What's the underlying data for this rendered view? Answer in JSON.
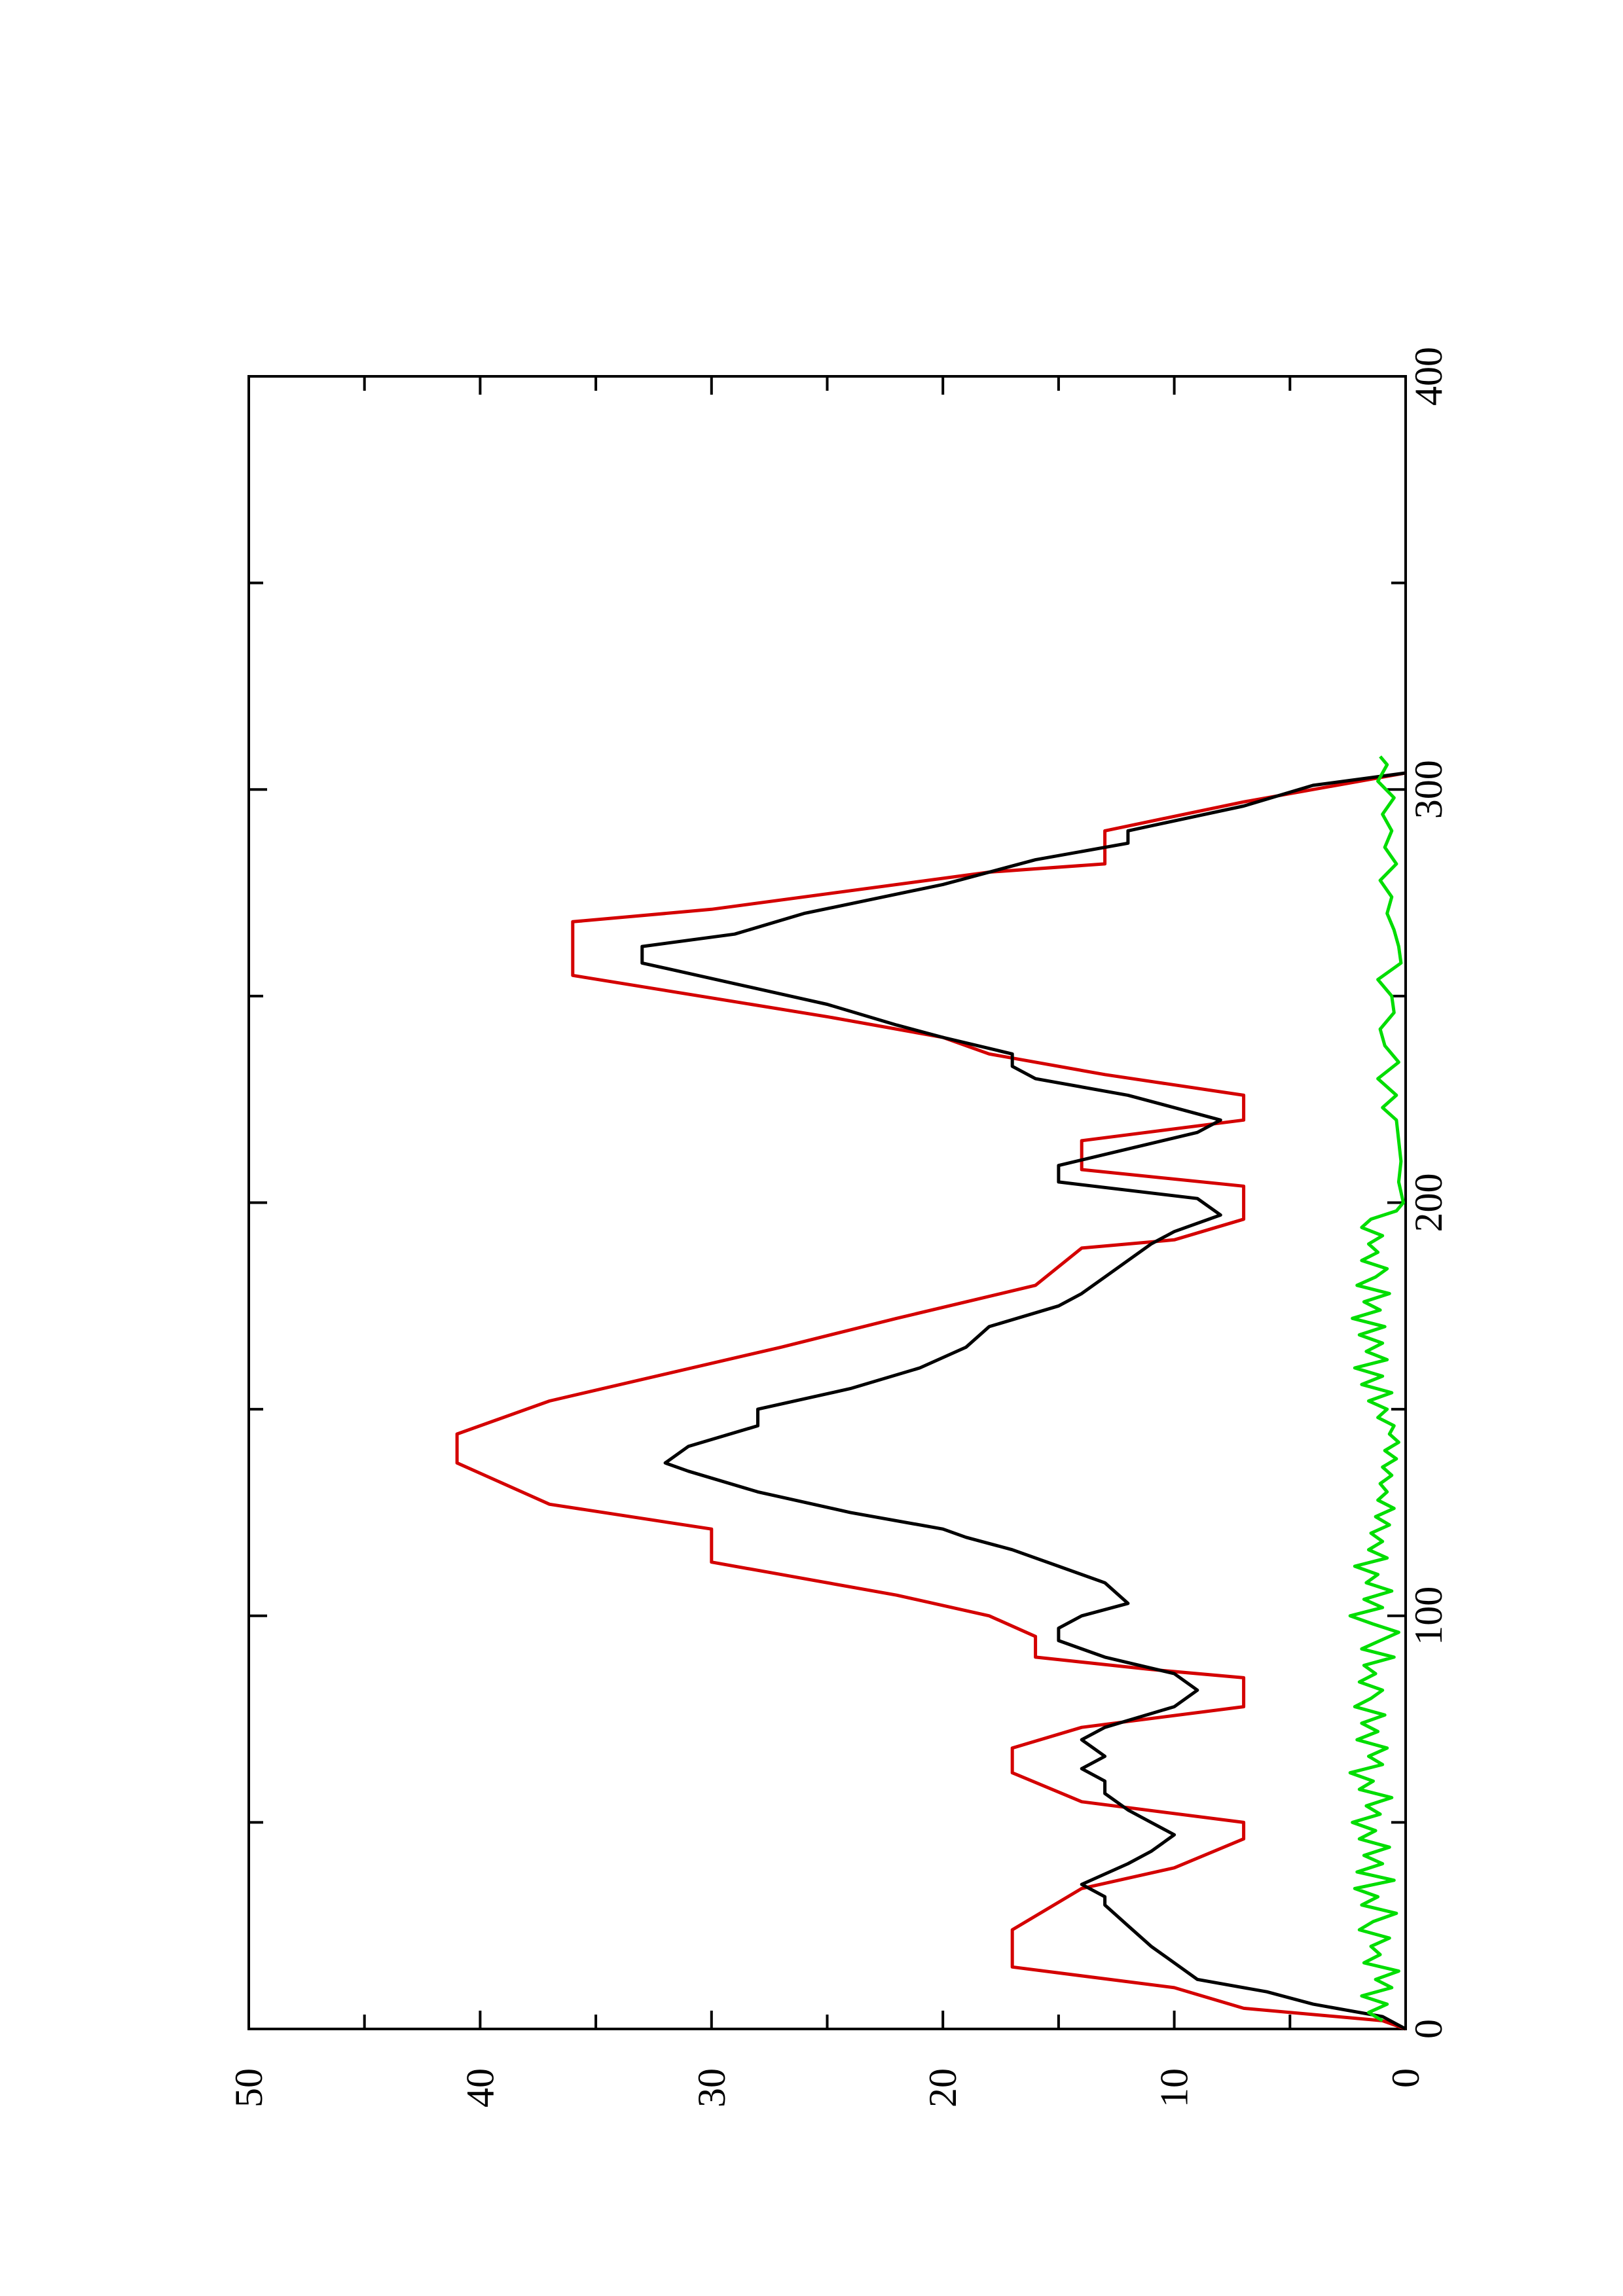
{
  "chart_data": {
    "type": "line",
    "orientation": "rotated-90-ccw",
    "title": "",
    "xlabel": "",
    "ylabel": "",
    "xlim": [
      0,
      400
    ],
    "ylim": [
      0,
      50
    ],
    "x_ticks": [
      "0",
      "100",
      "200",
      "300",
      "400"
    ],
    "y_ticks": [
      "0",
      "10",
      "20",
      "30",
      "40",
      "50"
    ],
    "grid": false,
    "legend": "none",
    "series": [
      {
        "color": "#d40000",
        "points": [
          [
            0,
            0
          ],
          [
            2,
            1
          ],
          [
            5,
            7
          ],
          [
            10,
            10
          ],
          [
            15,
            17
          ],
          [
            24,
            17
          ],
          [
            34,
            14
          ],
          [
            39,
            10
          ],
          [
            46,
            7
          ],
          [
            50,
            7
          ],
          [
            55,
            14
          ],
          [
            62,
            17
          ],
          [
            68,
            17
          ],
          [
            73,
            14
          ],
          [
            78,
            7
          ],
          [
            85,
            7
          ],
          [
            87,
            11
          ],
          [
            90,
            16
          ],
          [
            95,
            16
          ],
          [
            100,
            18
          ],
          [
            105,
            22
          ],
          [
            110,
            27
          ],
          [
            113,
            30
          ],
          [
            121,
            30
          ],
          [
            127,
            37
          ],
          [
            137,
            41
          ],
          [
            144,
            41
          ],
          [
            152,
            37
          ],
          [
            165,
            27
          ],
          [
            172,
            22
          ],
          [
            180,
            16
          ],
          [
            189,
            14
          ],
          [
            191,
            10
          ],
          [
            196,
            7
          ],
          [
            204,
            7
          ],
          [
            208,
            14
          ],
          [
            215,
            14
          ],
          [
            220,
            7
          ],
          [
            226,
            7
          ],
          [
            231,
            13
          ],
          [
            236,
            18
          ],
          [
            240,
            20
          ],
          [
            245,
            25
          ],
          [
            255,
            36
          ],
          [
            268,
            36
          ],
          [
            271,
            30
          ],
          [
            280,
            18
          ],
          [
            282,
            13
          ],
          [
            290,
            13
          ],
          [
            297,
            7
          ],
          [
            304,
            0
          ]
        ]
      },
      {
        "color": "#000000",
        "points": [
          [
            0,
            0
          ],
          [
            3,
            1
          ],
          [
            6,
            4
          ],
          [
            9,
            6
          ],
          [
            12,
            9
          ],
          [
            16,
            10
          ],
          [
            20,
            11
          ],
          [
            25,
            12
          ],
          [
            30,
            13
          ],
          [
            32,
            13
          ],
          [
            35,
            14
          ],
          [
            40,
            12
          ],
          [
            43,
            11
          ],
          [
            47,
            10
          ],
          [
            50,
            11
          ],
          [
            53,
            12
          ],
          [
            57,
            13
          ],
          [
            60,
            13
          ],
          [
            63,
            14
          ],
          [
            66,
            13
          ],
          [
            70,
            14
          ],
          [
            73,
            13
          ],
          [
            78,
            10
          ],
          [
            82,
            9
          ],
          [
            86,
            10
          ],
          [
            90,
            13
          ],
          [
            94,
            15
          ],
          [
            97,
            15
          ],
          [
            100,
            14
          ],
          [
            103,
            12
          ],
          [
            108,
            13
          ],
          [
            112,
            15
          ],
          [
            116,
            17
          ],
          [
            119,
            19
          ],
          [
            121,
            20
          ],
          [
            125,
            24
          ],
          [
            130,
            28
          ],
          [
            135,
            31
          ],
          [
            137,
            32
          ],
          [
            141,
            31
          ],
          [
            146,
            28
          ],
          [
            150,
            28
          ],
          [
            155,
            24
          ],
          [
            160,
            21
          ],
          [
            165,
            19
          ],
          [
            170,
            18
          ],
          [
            175,
            15
          ],
          [
            178,
            14
          ],
          [
            182,
            13
          ],
          [
            186,
            12
          ],
          [
            190,
            11
          ],
          [
            193,
            10
          ],
          [
            197,
            8
          ],
          [
            201,
            9
          ],
          [
            205,
            15
          ],
          [
            209,
            15
          ],
          [
            213,
            12
          ],
          [
            217,
            9
          ],
          [
            220,
            8
          ],
          [
            223,
            10
          ],
          [
            226,
            12
          ],
          [
            230,
            16
          ],
          [
            233,
            17
          ],
          [
            236,
            17
          ],
          [
            240,
            20
          ],
          [
            243,
            22
          ],
          [
            248,
            25
          ],
          [
            253,
            29
          ],
          [
            258,
            33
          ],
          [
            262,
            33
          ],
          [
            265,
            29
          ],
          [
            270,
            26
          ],
          [
            277,
            20
          ],
          [
            283,
            16
          ],
          [
            287,
            12
          ],
          [
            290,
            12
          ],
          [
            296,
            7
          ],
          [
            301,
            4
          ],
          [
            304,
            0
          ]
        ]
      },
      {
        "color": "#00dd00",
        "points": [
          [
            2,
            1
          ],
          [
            4,
            1.6
          ],
          [
            6,
            0.8
          ],
          [
            8,
            1.9
          ],
          [
            10,
            0.6
          ],
          [
            12,
            1.3
          ],
          [
            14,
            0.3
          ],
          [
            16,
            1.8
          ],
          [
            18,
            1.1
          ],
          [
            20,
            1.5
          ],
          [
            22,
            0.7
          ],
          [
            24,
            2.0
          ],
          [
            26,
            1.4
          ],
          [
            28,
            0.4
          ],
          [
            30,
            1.9
          ],
          [
            32,
            1.2
          ],
          [
            34,
            2.2
          ],
          [
            36,
            0.5
          ],
          [
            38,
            2.1
          ],
          [
            40,
            1.0
          ],
          [
            42,
            1.8
          ],
          [
            44,
            0.7
          ],
          [
            46,
            2.0
          ],
          [
            48,
            1.3
          ],
          [
            50,
            2.3
          ],
          [
            52,
            1.1
          ],
          [
            54,
            1.7
          ],
          [
            56,
            0.6
          ],
          [
            58,
            2.0
          ],
          [
            60,
            1.4
          ],
          [
            62,
            2.4
          ],
          [
            64,
            1.0
          ],
          [
            66,
            1.6
          ],
          [
            68,
            0.8
          ],
          [
            70,
            2.1
          ],
          [
            72,
            1.2
          ],
          [
            74,
            1.9
          ],
          [
            76,
            0.9
          ],
          [
            78,
            2.2
          ],
          [
            80,
            1.5
          ],
          [
            82,
            1.0
          ],
          [
            84,
            2.0
          ],
          [
            86,
            1.3
          ],
          [
            88,
            1.8
          ],
          [
            90,
            0.5
          ],
          [
            92,
            1.9
          ],
          [
            94,
            1.1
          ],
          [
            96,
            0.3
          ],
          [
            98,
            1.4
          ],
          [
            100,
            2.4
          ],
          [
            102,
            1.0
          ],
          [
            104,
            1.8
          ],
          [
            106,
            0.6
          ],
          [
            108,
            1.7
          ],
          [
            110,
            1.2
          ],
          [
            112,
            2.2
          ],
          [
            114,
            0.8
          ],
          [
            116,
            1.6
          ],
          [
            118,
            1.0
          ],
          [
            120,
            1.5
          ],
          [
            122,
            0.7
          ],
          [
            124,
            1.3
          ],
          [
            126,
            0.5
          ],
          [
            128,
            1.2
          ],
          [
            130,
            0.8
          ],
          [
            132,
            1.1
          ],
          [
            134,
            0.6
          ],
          [
            136,
            1.0
          ],
          [
            138,
            0.4
          ],
          [
            140,
            0.9
          ],
          [
            142,
            0.3
          ],
          [
            144,
            0.7
          ],
          [
            146,
            0.5
          ],
          [
            148,
            1.2
          ],
          [
            150,
            0.8
          ],
          [
            152,
            1.6
          ],
          [
            154,
            0.6
          ],
          [
            156,
            1.9
          ],
          [
            158,
            1.0
          ],
          [
            160,
            2.2
          ],
          [
            162,
            0.8
          ],
          [
            164,
            1.7
          ],
          [
            166,
            1.0
          ],
          [
            168,
            2.0
          ],
          [
            170,
            0.9
          ],
          [
            172,
            2.3
          ],
          [
            174,
            1.1
          ],
          [
            176,
            1.8
          ],
          [
            178,
            0.7
          ],
          [
            180,
            2.1
          ],
          [
            182,
            1.3
          ],
          [
            184,
            0.8
          ],
          [
            186,
            1.9
          ],
          [
            188,
            1.2
          ],
          [
            190,
            1.6
          ],
          [
            192,
            1.0
          ],
          [
            194,
            1.9
          ],
          [
            196,
            1.5
          ],
          [
            198,
            0.4
          ],
          [
            200,
            0.1
          ],
          [
            205,
            0.3
          ],
          [
            210,
            0.2
          ],
          [
            215,
            0.3
          ],
          [
            220,
            0.4
          ],
          [
            223,
            1.0
          ],
          [
            226,
            0.4
          ],
          [
            230,
            1.2
          ],
          [
            234,
            0.3
          ],
          [
            238,
            0.9
          ],
          [
            242,
            1.1
          ],
          [
            246,
            0.5
          ],
          [
            250,
            0.6
          ],
          [
            254,
            1.2
          ],
          [
            258,
            0.2
          ],
          [
            262,
            0.3
          ],
          [
            266,
            0.5
          ],
          [
            270,
            0.8
          ],
          [
            274,
            0.6
          ],
          [
            278,
            1.1
          ],
          [
            282,
            0.4
          ],
          [
            286,
            0.9
          ],
          [
            290,
            0.6
          ],
          [
            294,
            1.0
          ],
          [
            298,
            0.5
          ],
          [
            302,
            1.2
          ],
          [
            306,
            0.8
          ],
          [
            308,
            1.1
          ]
        ]
      }
    ]
  }
}
